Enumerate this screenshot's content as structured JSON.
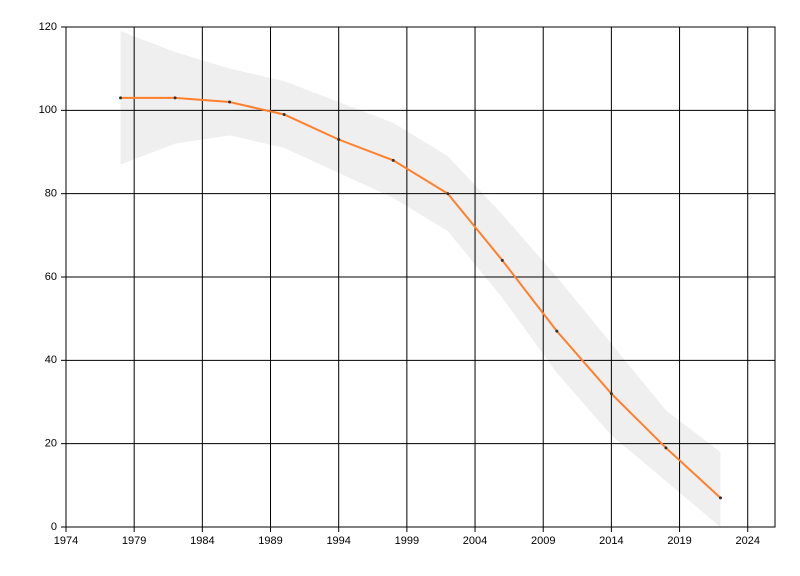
{
  "chart_data": {
    "type": "line",
    "x": [
      1978,
      1982,
      1986,
      1990,
      1994,
      1998,
      2002,
      2006,
      2010,
      2014,
      2018,
      2022
    ],
    "values": [
      103,
      103,
      102,
      99,
      93,
      88,
      80,
      64,
      47,
      32,
      19,
      7
    ],
    "upper": [
      119,
      114,
      110,
      107,
      102,
      97,
      89,
      75,
      60,
      44,
      28,
      18
    ],
    "lower": [
      87,
      92,
      94,
      91,
      85,
      79,
      71,
      55,
      37,
      22,
      11,
      0
    ],
    "color": "#ff7f2a",
    "band_color": "#efefef",
    "marker_color": "#333333",
    "xlim": [
      1974,
      2026
    ],
    "xticks": [
      1974,
      1979,
      1984,
      1989,
      1994,
      1999,
      2004,
      2009,
      2014,
      2019,
      2024
    ],
    "ylim": [
      0,
      120
    ],
    "yticks": [
      0,
      20,
      40,
      60,
      80,
      100,
      120
    ],
    "grid": true
  }
}
